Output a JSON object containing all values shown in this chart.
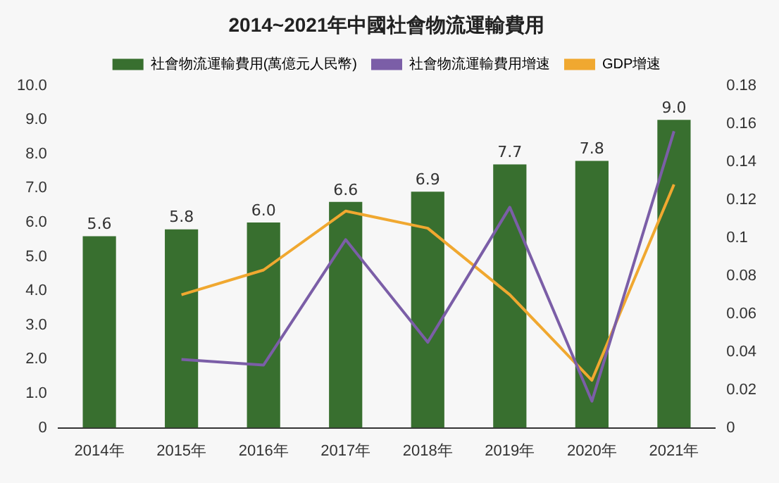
{
  "chart_data": {
    "type": "bar",
    "title": "2014~2021年中國社會物流運輸費用",
    "categories": [
      "2014年",
      "2015年",
      "2016年",
      "2017年",
      "2018年",
      "2019年",
      "2020年",
      "2021年"
    ],
    "series": [
      {
        "name": "社會物流運輸費用(萬億元人民幣)",
        "color": "#386f2f",
        "values": [
          5.6,
          5.8,
          6.0,
          6.6,
          6.9,
          7.7,
          7.8,
          9.0
        ],
        "value_labels": [
          "5.6",
          "5.8",
          "6.0",
          "6.6",
          "6.9",
          "7.7",
          "7.8",
          "9.0"
        ]
      },
      {
        "name": "社會物流運輸費用增速",
        "type": "line",
        "axis": "y2",
        "color": "#7b5ea7",
        "values": [
          null,
          0.036,
          0.033,
          0.099,
          0.045,
          0.116,
          0.014,
          0.156
        ]
      },
      {
        "name": "GDP增速",
        "type": "line",
        "axis": "y2",
        "color": "#f0a830",
        "values": [
          null,
          0.07,
          0.083,
          0.114,
          0.105,
          0.07,
          0.025,
          0.128
        ]
      }
    ],
    "ylim": [
      0,
      10
    ],
    "yticks": [
      {
        "value": 0,
        "label": "0"
      },
      {
        "value": 1,
        "label": "1.0"
      },
      {
        "value": 2,
        "label": "2.0"
      },
      {
        "value": 3,
        "label": "3.0"
      },
      {
        "value": 4,
        "label": "4.0"
      },
      {
        "value": 5,
        "label": "5.0"
      },
      {
        "value": 6,
        "label": "6.0"
      },
      {
        "value": 7,
        "label": "7.0"
      },
      {
        "value": 8,
        "label": "8.0"
      },
      {
        "value": 9,
        "label": "9.0"
      },
      {
        "value": 10,
        "label": "10.0"
      }
    ],
    "y2lim": [
      0,
      0.18
    ],
    "y2ticks": [
      0,
      0.02,
      0.04,
      0.06,
      0.08,
      0.1,
      0.12,
      0.14,
      0.16,
      0.18
    ],
    "legend": "top",
    "grid": false,
    "marker": "none",
    "line_style": "solid"
  }
}
